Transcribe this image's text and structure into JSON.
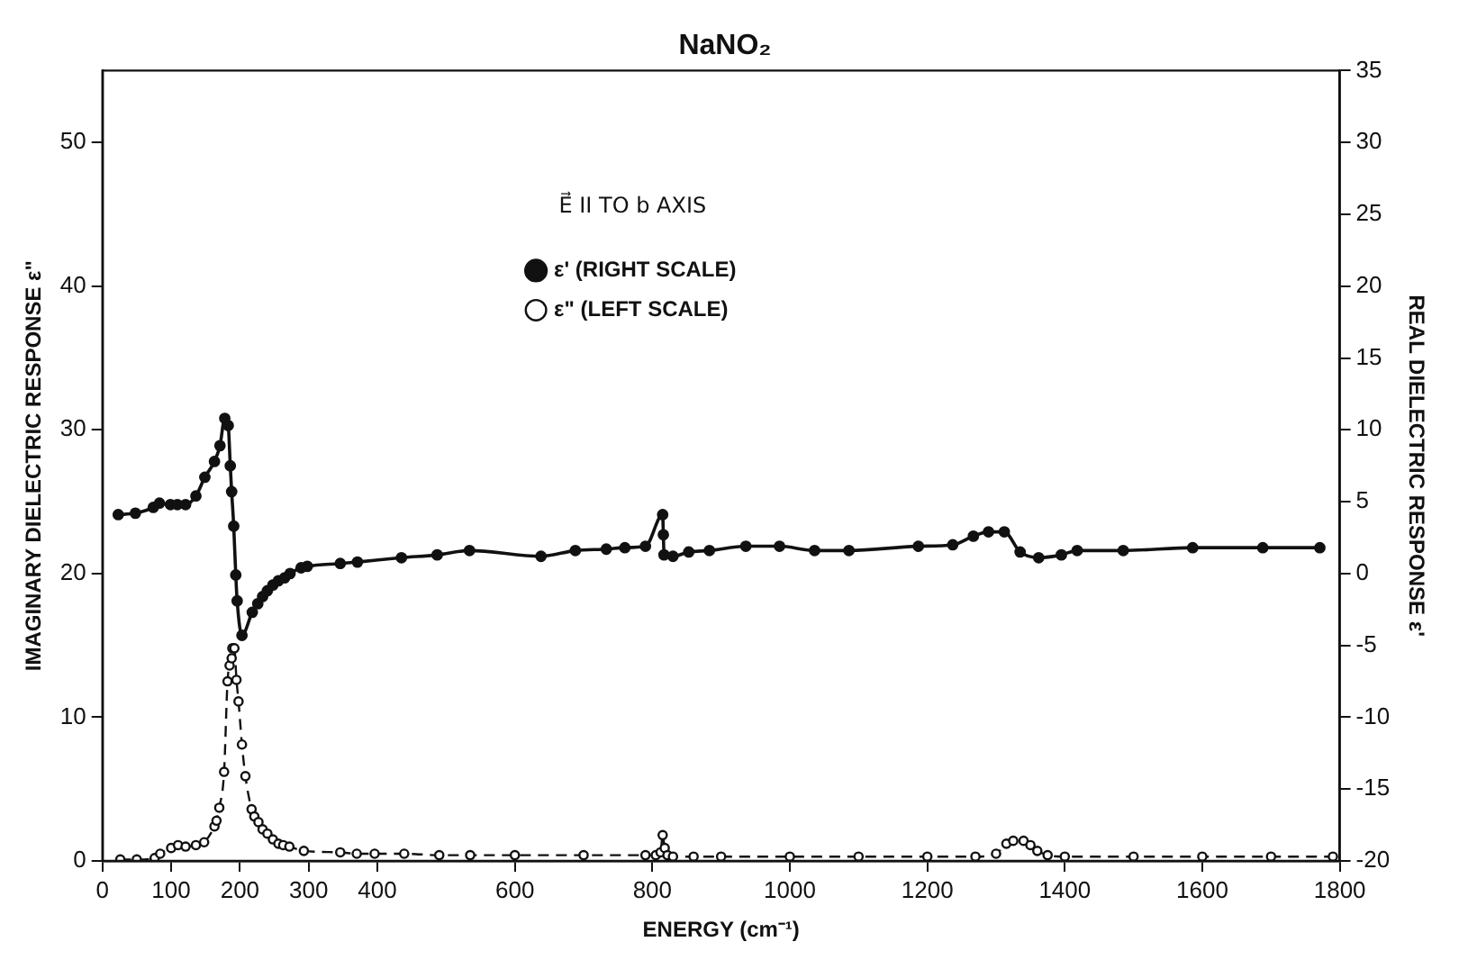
{
  "chart_data": {
    "type": "line",
    "title": "NaNO₂",
    "xlabel": "ENERGY (cm⁻¹)",
    "ylabel": "IMAGINARY DIELECTRIC RESPONSE ε\"",
    "y2label": "REAL DIELECTRIC RESPONSE ε'",
    "legend_title": "E⃗ II TO b AXIS",
    "legend": "top",
    "marker": "circle",
    "xlim": [
      0,
      1800
    ],
    "xticks": [
      0,
      100,
      200,
      300,
      400,
      600,
      800,
      1000,
      1200,
      1400,
      1600,
      1800
    ],
    "ylim": [
      0,
      55
    ],
    "yticks": [
      0,
      10,
      20,
      30,
      40,
      50
    ],
    "y2lim": [
      -20,
      35
    ],
    "y2ticks": [
      -20,
      -15,
      -10,
      -5,
      0,
      5,
      10,
      15,
      20,
      25,
      30,
      35
    ],
    "series": [
      {
        "name": "ε' (RIGHT SCALE)",
        "color": "#111111",
        "axis": "y2",
        "line_style": "solid",
        "x": [
          23,
          48,
          74,
          83,
          99,
          109,
          121,
          136,
          149,
          163,
          171,
          178,
          183,
          186,
          188,
          191,
          194,
          196,
          203,
          218,
          226,
          233,
          240,
          248,
          256,
          265,
          273,
          289,
          298,
          346,
          371,
          435,
          487,
          534,
          638,
          688,
          733,
          760,
          790,
          815,
          816,
          817,
          830,
          853,
          883,
          936,
          985,
          1036,
          1086,
          1187,
          1237,
          1267,
          1289,
          1312,
          1335,
          1362,
          1395,
          1418,
          1485,
          1586,
          1688,
          1771
        ],
        "values": [
          4.1,
          4.2,
          4.6,
          4.9,
          4.8,
          4.8,
          4.8,
          5.4,
          6.7,
          7.8,
          8.9,
          10.8,
          10.3,
          7.5,
          5.7,
          3.3,
          -0.1,
          -1.9,
          -4.3,
          -2.7,
          -2.1,
          -1.6,
          -1.2,
          -0.8,
          -0.5,
          -0.3,
          0.0,
          0.4,
          0.5,
          0.7,
          0.8,
          1.1,
          1.3,
          1.6,
          1.2,
          1.6,
          1.7,
          1.8,
          1.9,
          4.1,
          2.7,
          1.3,
          1.2,
          1.5,
          1.6,
          1.9,
          1.9,
          1.6,
          1.6,
          1.9,
          2.0,
          2.6,
          2.9,
          2.9,
          1.5,
          1.1,
          1.3,
          1.6,
          1.6,
          1.8,
          1.8,
          1.8
        ]
      },
      {
        "name": "ε\" (LEFT SCALE)",
        "color": "#111111",
        "axis": "y",
        "line_style": "dashed",
        "x": [
          26,
          50,
          76,
          84,
          100,
          110,
          121,
          136,
          148,
          163,
          166,
          170,
          177,
          182,
          185,
          188,
          189,
          192,
          195,
          198,
          203,
          208,
          217,
          221,
          227,
          233,
          240,
          248,
          256,
          263,
          272,
          293,
          346,
          370,
          396,
          439,
          490,
          535,
          600,
          700,
          790,
          805,
          812,
          815,
          818,
          822,
          830,
          860,
          900,
          1000,
          1100,
          1200,
          1270,
          1300,
          1315,
          1325,
          1340,
          1350,
          1360,
          1375,
          1400,
          1500,
          1600,
          1700,
          1790
        ],
        "values": [
          0.1,
          0.1,
          0.2,
          0.5,
          0.9,
          1.1,
          1.0,
          1.1,
          1.3,
          2.4,
          2.8,
          3.7,
          6.2,
          12.5,
          13.6,
          14.1,
          14.8,
          14.8,
          12.6,
          11.1,
          8.1,
          5.9,
          3.6,
          3.1,
          2.7,
          2.2,
          1.9,
          1.5,
          1.2,
          1.1,
          1.0,
          0.7,
          0.6,
          0.5,
          0.5,
          0.5,
          0.4,
          0.4,
          0.4,
          0.4,
          0.4,
          0.4,
          0.6,
          1.8,
          0.9,
          0.4,
          0.3,
          0.3,
          0.3,
          0.3,
          0.3,
          0.3,
          0.3,
          0.5,
          1.2,
          1.4,
          1.4,
          1.1,
          0.7,
          0.4,
          0.3,
          0.3,
          0.3,
          0.3,
          0.3
        ]
      }
    ]
  }
}
